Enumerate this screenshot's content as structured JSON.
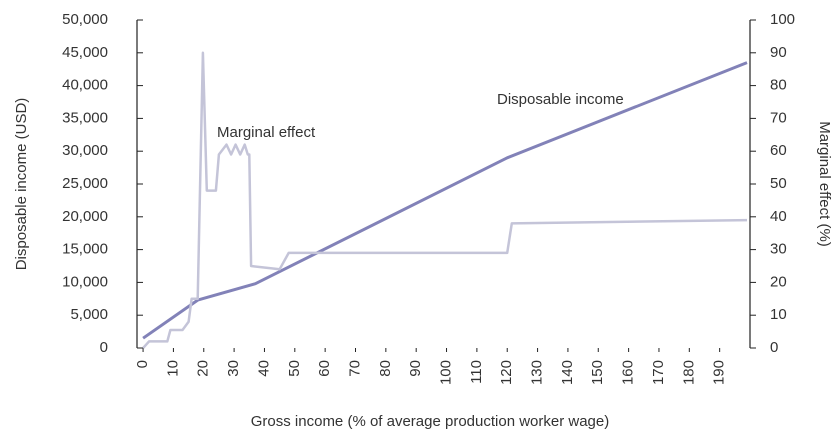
{
  "chart_data": {
    "type": "line",
    "xlabel": "Gross income (% of average production worker wage)",
    "ylabel": "Disposable income  (USD)",
    "y2label": "Marginal effect (%)",
    "xlim": [
      -2,
      200
    ],
    "xticks": [
      0,
      10,
      20,
      30,
      40,
      50,
      60,
      70,
      80,
      90,
      100,
      110,
      120,
      130,
      140,
      150,
      160,
      170,
      180,
      190
    ],
    "ylim": [
      0,
      50000
    ],
    "yticks": [
      0,
      {
        "value": 5000,
        "label": "5,000"
      },
      {
        "value": 10000,
        "label": "10,000"
      },
      {
        "value": 15000,
        "label": "15,000"
      },
      {
        "value": 20000,
        "label": "20,000"
      },
      {
        "value": 25000,
        "label": "25,000"
      },
      {
        "value": 30000,
        "label": "30,000"
      },
      {
        "value": 35000,
        "label": "35,000"
      },
      {
        "value": 40000,
        "label": "40,000"
      },
      {
        "value": 45000,
        "label": "45,000"
      },
      {
        "value": 50000,
        "label": "50,000"
      }
    ],
    "y2lim": [
      0,
      100
    ],
    "y2ticks": [
      0,
      10,
      20,
      30,
      40,
      50,
      60,
      70,
      80,
      90,
      100
    ],
    "series": [
      {
        "name": "Disposable income",
        "color": "#8282b8",
        "axis": "y",
        "x": [
          0,
          18,
          37,
          120,
          199
        ],
        "values": [
          1500,
          7300,
          9800,
          29000,
          43500
        ]
      },
      {
        "name": "Marginal effect",
        "color": "#c4c4d8",
        "axis": "y2",
        "x": [
          0,
          1,
          2,
          8,
          9,
          13,
          15,
          16,
          18,
          19.7,
          21,
          24,
          25,
          27.5,
          29,
          30.5,
          32,
          33.5,
          34.5,
          35,
          35.6,
          45,
          48,
          120,
          121.5,
          199
        ],
        "values": [
          0,
          1,
          2,
          2,
          5.5,
          5.5,
          8,
          15,
          15,
          90,
          48,
          48,
          59,
          62,
          59,
          62,
          59,
          62,
          59,
          59,
          25,
          24,
          29,
          29,
          38,
          39
        ]
      }
    ]
  }
}
